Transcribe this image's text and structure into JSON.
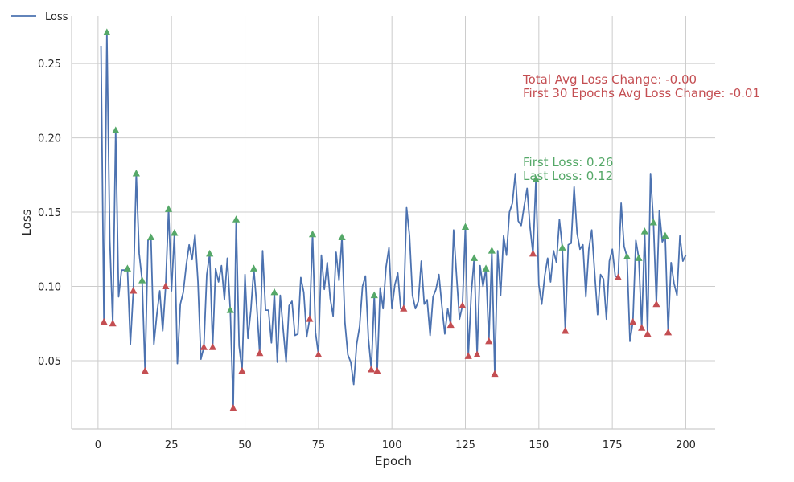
{
  "chart_data": {
    "type": "line",
    "xlabel": "Epoch",
    "ylabel": "Loss",
    "xlim": [
      -9,
      210
    ],
    "ylim": [
      0.004,
      0.282
    ],
    "xticks": [
      0,
      25,
      50,
      75,
      100,
      125,
      150,
      175,
      200
    ],
    "yticks": [
      0.05,
      0.1,
      0.15,
      0.2,
      0.25
    ],
    "xtick_labels": [
      "0",
      "25",
      "50",
      "75",
      "100",
      "125",
      "150",
      "175",
      "200"
    ],
    "ytick_labels": [
      "0.05",
      "0.10",
      "0.15",
      "0.20",
      "0.25"
    ],
    "grid": true,
    "legend_position": "top-left",
    "series": [
      {
        "name": "Loss",
        "color": "#4c72b0",
        "x": [
          1,
          2,
          3,
          4,
          5,
          6,
          7,
          8,
          9,
          10,
          11,
          12,
          13,
          14,
          15,
          16,
          17,
          18,
          19,
          20,
          21,
          22,
          23,
          24,
          25,
          26,
          27,
          28,
          29,
          30,
          31,
          32,
          33,
          34,
          35,
          36,
          37,
          38,
          39,
          40,
          41,
          42,
          43,
          44,
          45,
          46,
          47,
          48,
          49,
          50,
          51,
          52,
          53,
          54,
          55,
          56,
          57,
          58,
          59,
          60,
          61,
          62,
          63,
          64,
          65,
          66,
          67,
          68,
          69,
          70,
          71,
          72,
          73,
          74,
          75,
          76,
          77,
          78,
          79,
          80,
          81,
          82,
          83,
          84,
          85,
          86,
          87,
          88,
          89,
          90,
          91,
          92,
          93,
          94,
          95,
          96,
          97,
          98,
          99,
          100,
          101,
          102,
          103,
          104,
          105,
          106,
          107,
          108,
          109,
          110,
          111,
          112,
          113,
          114,
          115,
          116,
          117,
          118,
          119,
          120,
          121,
          122,
          123,
          124,
          125,
          126,
          127,
          128,
          129,
          130,
          131,
          132,
          133,
          134,
          135,
          136,
          137,
          138,
          139,
          140,
          141,
          142,
          143,
          144,
          145,
          146,
          147,
          148,
          149,
          150,
          151,
          152,
          153,
          154,
          155,
          156,
          157,
          158,
          159,
          160,
          161,
          162,
          163,
          164,
          165,
          166,
          167,
          168,
          169,
          170,
          171,
          172,
          173,
          174,
          175,
          176,
          177,
          178,
          179,
          180,
          181,
          182,
          183,
          184,
          185,
          186,
          187,
          188,
          189,
          190,
          191,
          192,
          193,
          194,
          195,
          196,
          197,
          198,
          199,
          200
        ],
        "values": [
          0.262,
          0.076,
          0.271,
          0.131,
          0.075,
          0.205,
          0.093,
          0.111,
          0.111,
          0.112,
          0.061,
          0.097,
          0.176,
          0.122,
          0.104,
          0.043,
          0.131,
          0.133,
          0.061,
          0.081,
          0.097,
          0.07,
          0.1,
          0.152,
          0.097,
          0.136,
          0.048,
          0.088,
          0.096,
          0.114,
          0.128,
          0.118,
          0.135,
          0.103,
          0.051,
          0.059,
          0.108,
          0.122,
          0.059,
          0.112,
          0.103,
          0.114,
          0.091,
          0.119,
          0.084,
          0.018,
          0.145,
          0.06,
          0.043,
          0.108,
          0.065,
          0.084,
          0.112,
          0.087,
          0.055,
          0.124,
          0.084,
          0.084,
          0.062,
          0.096,
          0.049,
          0.094,
          0.071,
          0.049,
          0.087,
          0.09,
          0.067,
          0.068,
          0.106,
          0.096,
          0.066,
          0.078,
          0.135,
          0.069,
          0.054,
          0.121,
          0.098,
          0.116,
          0.092,
          0.08,
          0.123,
          0.104,
          0.133,
          0.076,
          0.054,
          0.049,
          0.034,
          0.061,
          0.073,
          0.1,
          0.107,
          0.065,
          0.044,
          0.094,
          0.043,
          0.099,
          0.085,
          0.113,
          0.126,
          0.085,
          0.101,
          0.109,
          0.085,
          0.085,
          0.153,
          0.134,
          0.094,
          0.085,
          0.09,
          0.117,
          0.088,
          0.091,
          0.067,
          0.093,
          0.098,
          0.108,
          0.087,
          0.068,
          0.085,
          0.074,
          0.138,
          0.107,
          0.078,
          0.087,
          0.14,
          0.053,
          0.095,
          0.119,
          0.054,
          0.114,
          0.1,
          0.112,
          0.063,
          0.124,
          0.041,
          0.124,
          0.094,
          0.134,
          0.121,
          0.15,
          0.156,
          0.176,
          0.144,
          0.141,
          0.154,
          0.166,
          0.14,
          0.122,
          0.172,
          0.101,
          0.088,
          0.107,
          0.119,
          0.103,
          0.124,
          0.116,
          0.145,
          0.126,
          0.07,
          0.128,
          0.129,
          0.167,
          0.136,
          0.125,
          0.128,
          0.093,
          0.125,
          0.138,
          0.109,
          0.081,
          0.108,
          0.105,
          0.078,
          0.117,
          0.125,
          0.107,
          0.106,
          0.156,
          0.127,
          0.12,
          0.063,
          0.076,
          0.131,
          0.119,
          0.072,
          0.137,
          0.068,
          0.176,
          0.143,
          0.088,
          0.151,
          0.13,
          0.134,
          0.069,
          0.116,
          0.102,
          0.094,
          0.134,
          0.117,
          0.121
        ]
      }
    ],
    "peaks_x": [
      3,
      6,
      10,
      13,
      15,
      18,
      24,
      26,
      38,
      45,
      47,
      53,
      60,
      73,
      83,
      94,
      125,
      128,
      132,
      134,
      149,
      158,
      180,
      184,
      186,
      189,
      193
    ],
    "troughs_x": [
      2,
      5,
      12,
      16,
      23,
      36,
      39,
      46,
      49,
      55,
      72,
      75,
      93,
      95,
      104,
      120,
      124,
      126,
      129,
      133,
      135,
      148,
      159,
      177,
      182,
      185,
      187,
      190,
      194
    ],
    "peak_marker_color": "#55a868",
    "trough_marker_color": "#c44e52",
    "annotations": {
      "loss_change": {
        "color": "#c44e52",
        "line1": "Total Avg Loss Change: -0.00",
        "line2": "First 30 Epochs Avg Loss Change: -0.01"
      },
      "first_last": {
        "color": "#55a868",
        "line1": "First Loss: 0.26",
        "line2": "Last Loss: 0.12"
      }
    }
  }
}
